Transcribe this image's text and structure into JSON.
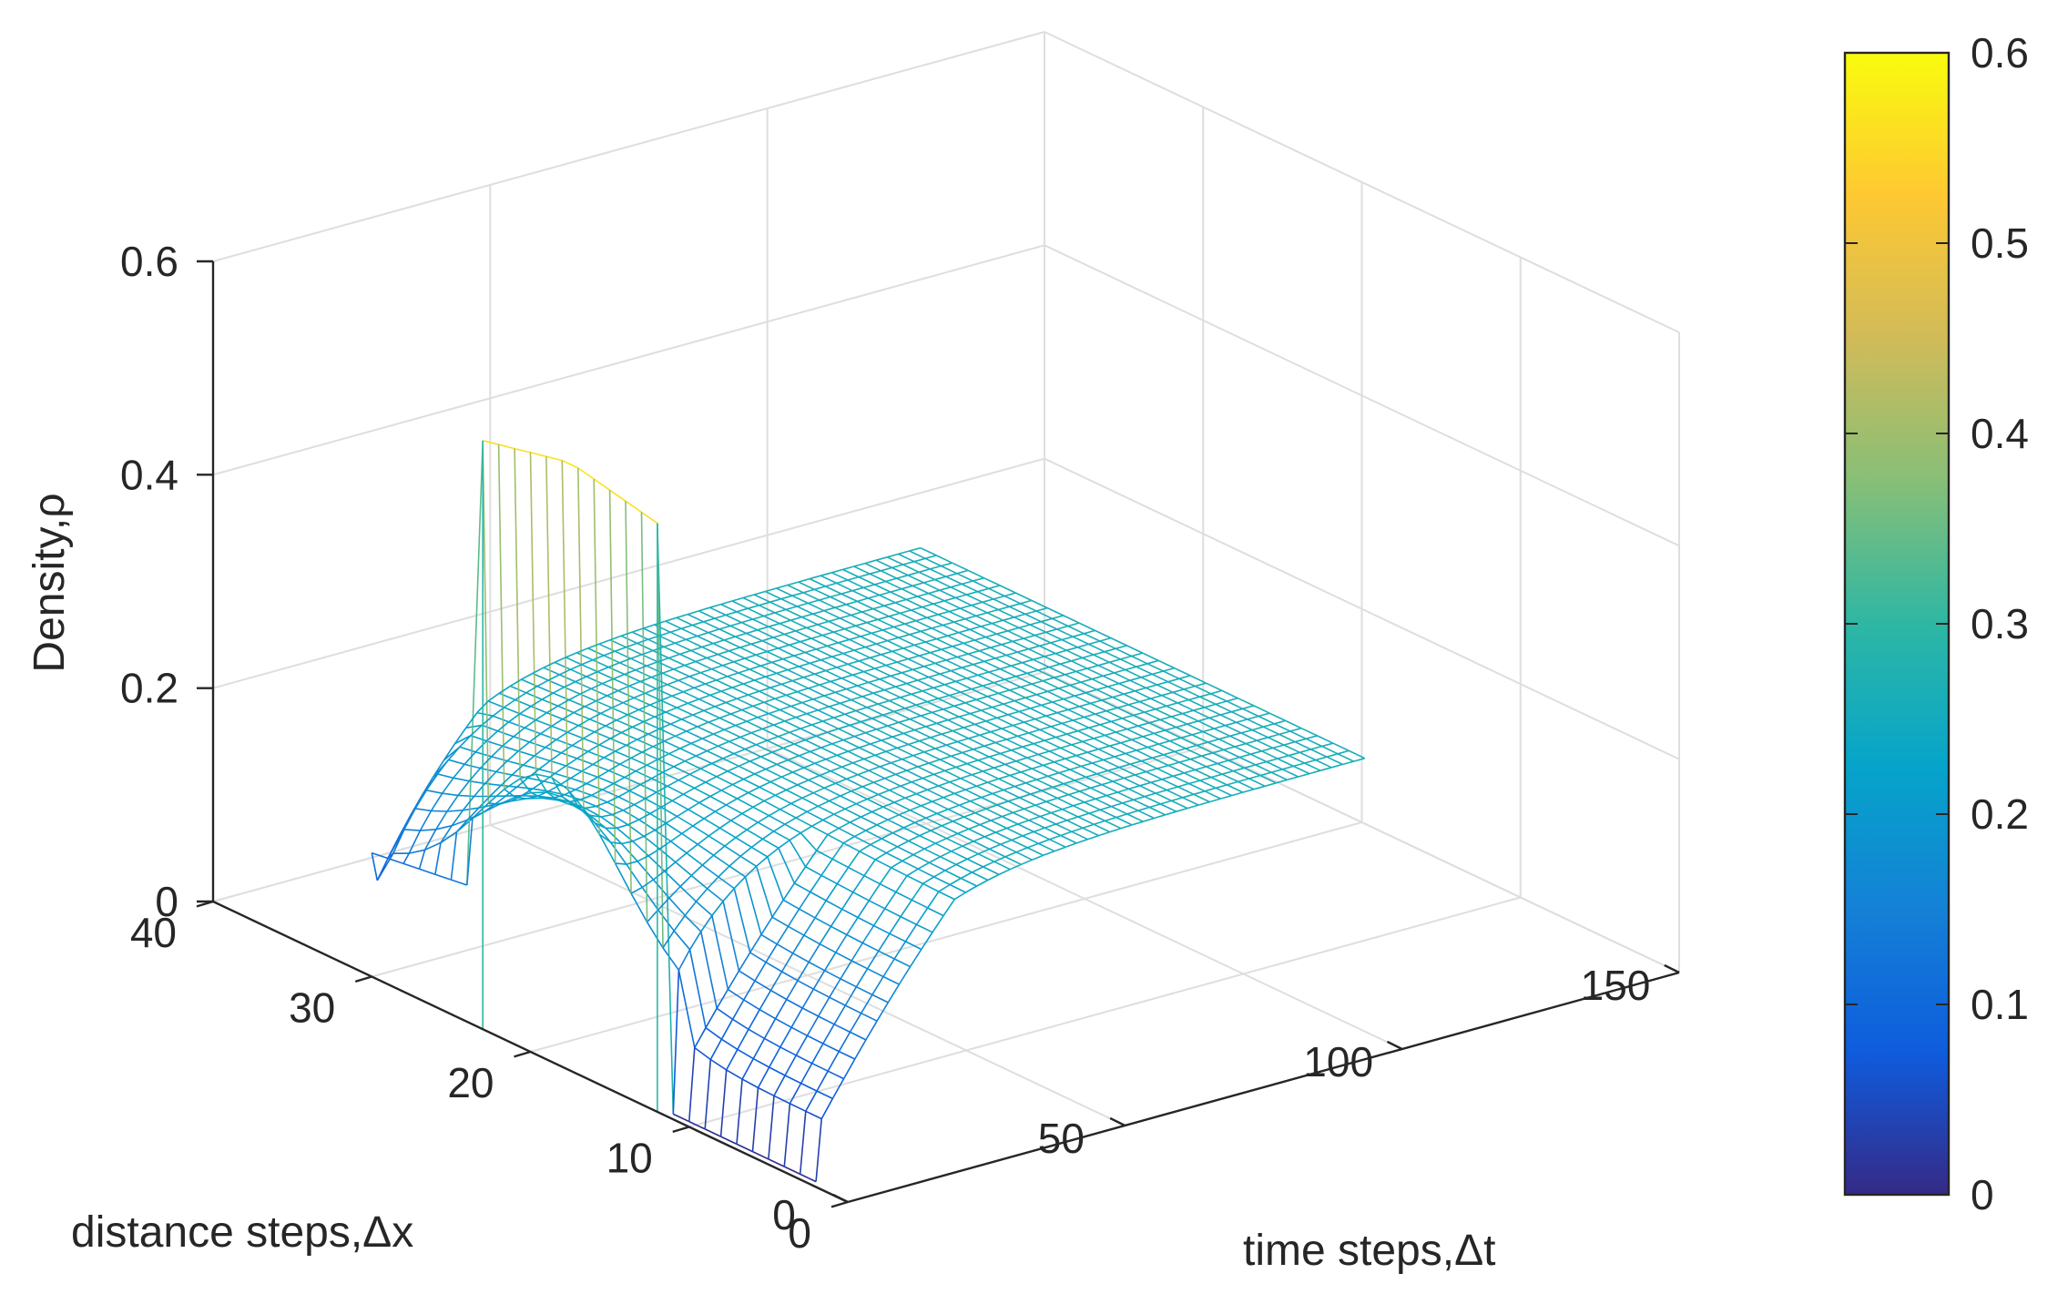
{
  "chart_data": {
    "type": "surface-mesh",
    "title": "",
    "xlabel": "time steps,Δt",
    "ylabel": "distance steps,Δx",
    "zlabel": "Density,ρ",
    "x_ticks": [
      "0",
      "50",
      "100",
      "150"
    ],
    "y_ticks": [
      "0",
      "10",
      "20",
      "30",
      "40"
    ],
    "z_ticks": [
      "0",
      "0.2",
      "0.4",
      "0.6"
    ],
    "xlim": [
      0,
      150
    ],
    "ylim": [
      0,
      40
    ],
    "zlim": [
      0,
      0.6
    ],
    "grid": true,
    "colormap": "parula",
    "colorbar": {
      "ticks": [
        "0",
        "0.1",
        "0.2",
        "0.3",
        "0.4",
        "0.5",
        "0.6"
      ],
      "range": [
        0,
        0.6
      ],
      "placement": "right"
    },
    "colormap_stops": [
      "#352a87",
      "#0f5cdd",
      "#1481d6",
      "#06a4ca",
      "#2eb7a4",
      "#87bf77",
      "#d1bb59",
      "#fec832",
      "#f9fb0e"
    ],
    "surface_description": {
      "initial_block": {
        "distance_range": [
          12,
          23
        ],
        "time_at_start": 0,
        "density": 0.57
      },
      "far_field_density": 0.26,
      "max_time": 100
    }
  }
}
